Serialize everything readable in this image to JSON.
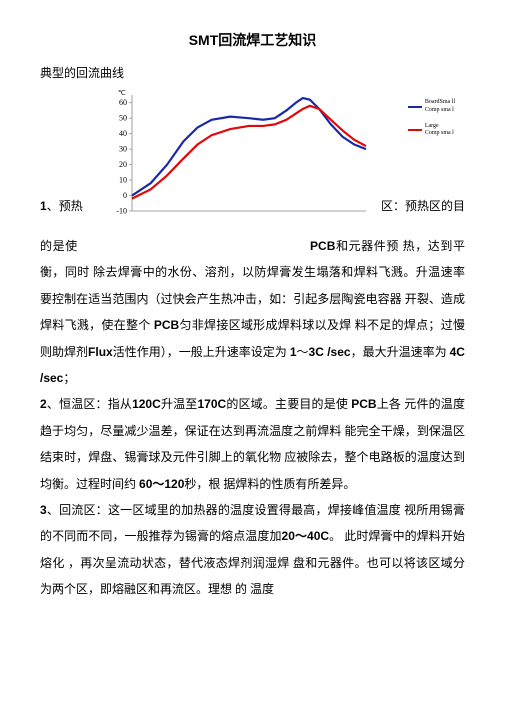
{
  "title_prefix": "SMT",
  "title_rest": "回流焊工艺知识",
  "subtitle": "典型的回流曲线",
  "chart": {
    "type": "line",
    "y_ticks": [
      -10,
      0,
      10,
      20,
      30,
      40,
      50,
      60
    ],
    "y_label": "℃",
    "xlim": [
      0,
      100
    ],
    "ylim": [
      -10,
      65
    ],
    "series": [
      {
        "name": "BoardSmall Comp small",
        "color": "#1a2aa5",
        "width": 2.2,
        "points": [
          [
            0,
            0
          ],
          [
            8,
            8
          ],
          [
            15,
            20
          ],
          [
            22,
            35
          ],
          [
            28,
            44
          ],
          [
            34,
            49
          ],
          [
            42,
            51
          ],
          [
            50,
            50
          ],
          [
            56,
            49
          ],
          [
            61,
            50
          ],
          [
            66,
            55
          ],
          [
            70,
            60
          ],
          [
            73,
            63
          ],
          [
            76,
            62
          ],
          [
            80,
            56
          ],
          [
            85,
            46
          ],
          [
            90,
            38
          ],
          [
            95,
            33
          ],
          [
            100,
            30
          ]
        ]
      },
      {
        "name": "Large Comp small",
        "color": "#e10808",
        "width": 2.2,
        "points": [
          [
            0,
            -2
          ],
          [
            8,
            4
          ],
          [
            15,
            13
          ],
          [
            22,
            24
          ],
          [
            28,
            33
          ],
          [
            34,
            39
          ],
          [
            42,
            43
          ],
          [
            50,
            45
          ],
          [
            56,
            45
          ],
          [
            61,
            46
          ],
          [
            66,
            49
          ],
          [
            70,
            53
          ],
          [
            73,
            56
          ],
          [
            76,
            58
          ],
          [
            80,
            56
          ],
          [
            85,
            49
          ],
          [
            90,
            42
          ],
          [
            95,
            36
          ],
          [
            100,
            32
          ]
        ]
      }
    ],
    "grid_color": "#888888",
    "background_color": "#ffffff",
    "tick_fontsize": 8
  },
  "legend": [
    {
      "color": "#1a2aa5",
      "label1": "BoardSma ll",
      "label2": "Comp sma l"
    },
    {
      "color": "#e10808",
      "label1": "Large",
      "label2": "Comp sma l"
    }
  ],
  "p1_num": "1",
  "p1_left": "、预热",
  "p1_right": "区：预热区的目",
  "p1_line2a": "的是使",
  "p1_line2b": "PCB",
  "p1_line2c": "和元器件预",
  "p1_body": "热，达到平衡，同时 除去焊膏中的水份、溶剂，以防焊膏发生塌落和焊料飞溅。升温速率 要控制在适当范围内（过快会产生热冲击，如：引起多层陶瓷电容器 开裂、造成焊料飞溅，使在整个 ",
  "p1_pcb": "PCB",
  "p1_body2": "匀非焊接区域形成焊料球以及焊 料不足的焊点；过慢则助焊剂",
  "p1_flux": "Flux",
  "p1_body3": "活性作用），一般上升速率设定为 ",
  "p1_rate1a": "1",
  "p1_rate1b": "～",
  "p1_rate1c": "3C /sec",
  "p1_body4": "，最大升温速率为 ",
  "p1_rate2": "4C /sec",
  "p1_body5": "；",
  "p2_num": "2",
  "p2_a": "、恒温区：指从",
  "p2_t1": "120C",
  "p2_b": "升温至",
  "p2_t2": "170C",
  "p2_c": "的区域。主要目的是使 ",
  "p2_pcb": "PCB",
  "p2_d": "上各 元件的温度趋于均匀，尽量减少温差，保证在达到再流温度之前焊料 能完全干燥，到保温区结束时，焊盘、锡膏球及元件引脚上的氧化物 应被除去，整个电路板的温度达到均衡。过程时间约 ",
  "p2_time": "60～120",
  "p2_e": "秒，根 据焊料的性质有所差异。",
  "p3_num": "3",
  "p3_a": "、回流区：这一区域里的加热器的温度设置得最高，焊接峰值温度 视所用锡膏的不同而不同，一般推荐为锡膏的熔点温度加",
  "p3_temp": "20～40C",
  "p3_b": "。 此时焊膏中的焊料开始熔化 ，再次呈流动状态，替代液态焊剂润湿焊 盘和元器件。也可以将该区域分为两个区，即熔融区和再流区。理想 的 温度"
}
